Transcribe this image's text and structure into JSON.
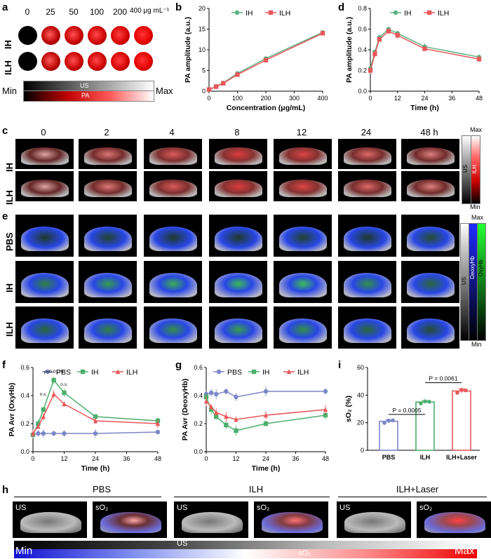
{
  "panel_a": {
    "label": "a",
    "concentrations": [
      "0",
      "25",
      "50",
      "100",
      "200",
      "400 μg mL⁻¹"
    ],
    "rows": [
      "IH",
      "ILH"
    ],
    "bar_us": "US",
    "bar_pa": "PA",
    "min_label": "Min",
    "max_label": "Max",
    "intensity": [
      0,
      0.35,
      0.5,
      0.6,
      0.7,
      0.85
    ]
  },
  "panel_c": {
    "label": "c",
    "times": [
      "0",
      "2",
      "4",
      "8",
      "12",
      "24",
      "48 h"
    ],
    "rows": [
      "IH",
      "ILH"
    ],
    "bar_max": "Max",
    "bar_min": "Min",
    "bar_us": "US",
    "bar_ilh": "ILH"
  },
  "panel_e": {
    "label": "e",
    "rows": [
      "PBS",
      "IH",
      "ILH"
    ],
    "bar_max": "Max",
    "bar_min": "Min",
    "bar_us": "US",
    "bar_deoxy": "DeoxyHb",
    "bar_oxy": "OxyHb"
  },
  "panel_h": {
    "label": "h",
    "groups": [
      "PBS",
      "ILH",
      "ILH+Laser"
    ],
    "tile_us": "US",
    "tile_so2": "sO₂",
    "bar_min": "Min",
    "bar_max": "Max",
    "bar_us": "US",
    "bar_so2": "sO₂"
  },
  "chart_data": [
    {
      "id": "b",
      "label": "b",
      "type": "line",
      "xlabel": "Concentration (μg/mL)",
      "ylabel": "PA amplitude (a.u.)",
      "xlim": [
        0,
        400
      ],
      "ylim": [
        0,
        20
      ],
      "xticks": [
        0,
        100,
        200,
        300,
        400
      ],
      "yticks": [
        0,
        5,
        10,
        15,
        20
      ],
      "series": [
        {
          "name": "IH",
          "color": "#5bb081",
          "marker": "circle",
          "x": [
            0,
            25,
            50,
            100,
            200,
            400
          ],
          "y": [
            0.4,
            1.2,
            2.0,
            4.3,
            7.9,
            14.2
          ]
        },
        {
          "name": "ILH",
          "color": "#e8575a",
          "marker": "square",
          "x": [
            0,
            25,
            50,
            100,
            200,
            400
          ],
          "y": [
            0.4,
            1.1,
            1.9,
            4.0,
            7.5,
            14.0
          ]
        }
      ]
    },
    {
      "id": "d",
      "label": "d",
      "type": "line",
      "xlabel": "Time (h)",
      "ylabel": "PA amplitude (a.u.)",
      "xlim": [
        0,
        48
      ],
      "ylim": [
        0,
        0.8
      ],
      "xticks": [
        0,
        12,
        24,
        36,
        48
      ],
      "yticks": [
        0.0,
        0.2,
        0.4,
        0.6,
        0.8
      ],
      "series": [
        {
          "name": "IH",
          "color": "#5bb081",
          "marker": "circle",
          "x": [
            0,
            2,
            4,
            8,
            12,
            24,
            48
          ],
          "y": [
            0.22,
            0.38,
            0.52,
            0.6,
            0.56,
            0.43,
            0.33
          ]
        },
        {
          "name": "ILH",
          "color": "#e8575a",
          "marker": "square",
          "x": [
            0,
            2,
            4,
            8,
            12,
            24,
            48
          ],
          "y": [
            0.2,
            0.36,
            0.5,
            0.58,
            0.54,
            0.41,
            0.31
          ]
        }
      ]
    },
    {
      "id": "f",
      "label": "f",
      "type": "line",
      "xlabel": "Time (h)",
      "ylabel": "PA Avr (OxyHb)",
      "xlim": [
        0,
        48
      ],
      "ylim": [
        0,
        0.6
      ],
      "xticks": [
        0,
        12,
        24,
        36,
        48
      ],
      "yticks": [
        0.0,
        0.2,
        0.4,
        0.6
      ],
      "annotations": [
        "n.s.",
        "p=0.0179",
        "n.s."
      ],
      "series": [
        {
          "name": "PBS",
          "color": "#7d86c8",
          "marker": "circle",
          "x": [
            0,
            2,
            4,
            8,
            12,
            24,
            48
          ],
          "y": [
            0.12,
            0.13,
            0.13,
            0.13,
            0.13,
            0.13,
            0.14
          ]
        },
        {
          "name": "IH",
          "color": "#4caf6e",
          "marker": "square",
          "x": [
            0,
            2,
            4,
            8,
            12,
            24,
            48
          ],
          "y": [
            0.12,
            0.2,
            0.3,
            0.51,
            0.42,
            0.25,
            0.22
          ]
        },
        {
          "name": "ILH",
          "color": "#e8575a",
          "marker": "triangle",
          "x": [
            0,
            2,
            4,
            8,
            12,
            24,
            48
          ],
          "y": [
            0.13,
            0.18,
            0.25,
            0.41,
            0.34,
            0.22,
            0.2
          ]
        }
      ]
    },
    {
      "id": "g",
      "label": "g",
      "type": "line",
      "xlabel": "Time (h)",
      "ylabel": "PA Avr (DeoxyHb)",
      "xlim": [
        0,
        48
      ],
      "ylim": [
        0,
        0.6
      ],
      "xticks": [
        0,
        12,
        24,
        36,
        48
      ],
      "yticks": [
        0.0,
        0.2,
        0.4,
        0.6
      ],
      "series": [
        {
          "name": "PBS",
          "color": "#7d86c8",
          "marker": "circle",
          "x": [
            0,
            2,
            4,
            8,
            12,
            24,
            48
          ],
          "y": [
            0.41,
            0.42,
            0.41,
            0.43,
            0.39,
            0.43,
            0.43
          ]
        },
        {
          "name": "IH",
          "color": "#4caf6e",
          "marker": "square",
          "x": [
            0,
            2,
            4,
            8,
            12,
            24,
            48
          ],
          "y": [
            0.39,
            0.3,
            0.25,
            0.19,
            0.15,
            0.2,
            0.26
          ]
        },
        {
          "name": "ILH",
          "color": "#e8575a",
          "marker": "triangle",
          "x": [
            0,
            2,
            4,
            8,
            12,
            24,
            48
          ],
          "y": [
            0.36,
            0.32,
            0.28,
            0.25,
            0.23,
            0.26,
            0.3
          ]
        }
      ]
    },
    {
      "id": "i",
      "label": "i",
      "type": "bar",
      "ylabel": "sO₂ (%)",
      "ylim": [
        0,
        60
      ],
      "yticks": [
        0,
        20,
        40,
        60
      ],
      "categories": [
        "PBS",
        "ILH",
        "ILH+Laser"
      ],
      "values": [
        21,
        35,
        43
      ],
      "errors": [
        1.2,
        1.0,
        1.5
      ],
      "colors": [
        "#7d86c8",
        "#4caf6e",
        "#e8575a"
      ],
      "points": [
        [
          19.8,
          21.5,
          21.7
        ],
        [
          34.0,
          35.5,
          35.2
        ],
        [
          41.7,
          43.8,
          43.4
        ]
      ],
      "comparisons": [
        {
          "label": "P = 0.0005",
          "from": 0,
          "to": 1
        },
        {
          "label": "P = 0.0061",
          "from": 1,
          "to": 2
        }
      ]
    }
  ]
}
